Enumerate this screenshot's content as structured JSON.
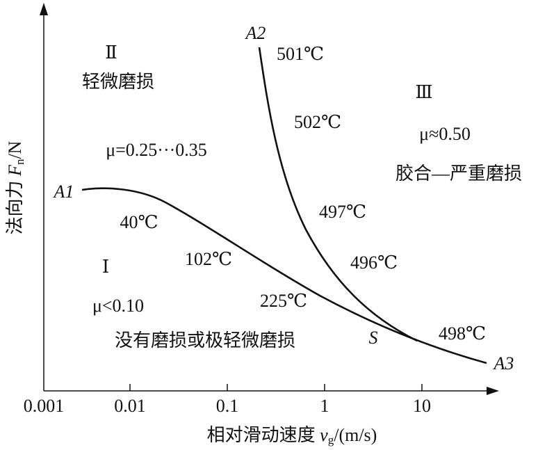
{
  "x_axis": {
    "label": {
      "text": "相对滑动速度 ",
      "symbol": "v",
      "sub": "g",
      "unit": "/(m/s)"
    },
    "ticks": [
      "0.001",
      "0.01",
      "0.1",
      "1",
      "10"
    ]
  },
  "y_axis": {
    "label": {
      "text": "法向力 ",
      "symbol": "F",
      "sub": "n",
      "unit": "/N"
    }
  },
  "regions": [
    {
      "numeral": "Ⅰ",
      "friction": "μ<0.10",
      "name": "没有磨损或极轻微磨损"
    },
    {
      "numeral": "Ⅱ",
      "friction": "μ=0.25···0.35",
      "name": "轻微磨损"
    },
    {
      "numeral": "Ⅲ",
      "friction": "μ≈0.50",
      "name": "胶合—严重磨损"
    }
  ],
  "points": [
    "A1",
    "A2",
    "A3",
    "S"
  ],
  "temperatures": [
    "501℃",
    "502℃",
    "497℃",
    "496℃",
    "498℃",
    "40℃",
    "102℃",
    "225℃"
  ]
}
